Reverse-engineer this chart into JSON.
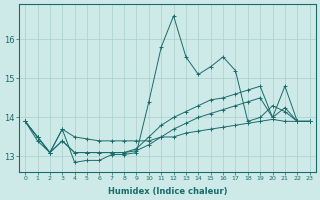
{
  "xlabel": "Humidex (Indice chaleur)",
  "background_color": "#ceeae8",
  "line_color": "#1a6b6b",
  "grid_color": "#aacfcc",
  "x_ticks": [
    0,
    1,
    2,
    3,
    4,
    5,
    6,
    7,
    8,
    9,
    10,
    11,
    12,
    13,
    14,
    15,
    16,
    17,
    18,
    19,
    20,
    21,
    22,
    23
  ],
  "y_ticks": [
    13,
    14,
    15,
    16
  ],
  "ylim": [
    12.6,
    16.9
  ],
  "xlim": [
    -0.5,
    23.5
  ],
  "series": [
    [
      13.9,
      13.4,
      13.1,
      13.7,
      12.85,
      12.9,
      12.9,
      13.05,
      13.05,
      13.1,
      14.4,
      15.8,
      16.6,
      15.55,
      15.1,
      15.3,
      15.55,
      15.2,
      13.9,
      14.0,
      14.3,
      14.15,
      13.9,
      13.9
    ],
    [
      13.9,
      13.5,
      13.1,
      13.7,
      13.5,
      13.45,
      13.4,
      13.4,
      13.4,
      13.4,
      13.4,
      13.5,
      13.5,
      13.6,
      13.65,
      13.7,
      13.75,
      13.8,
      13.85,
      13.9,
      13.95,
      13.9,
      13.9,
      13.9
    ],
    [
      13.9,
      13.5,
      13.1,
      13.4,
      13.1,
      13.1,
      13.1,
      13.1,
      13.1,
      13.15,
      13.3,
      13.5,
      13.7,
      13.85,
      14.0,
      14.1,
      14.2,
      14.3,
      14.4,
      14.5,
      14.0,
      14.8,
      13.9,
      13.9
    ],
    [
      13.9,
      13.5,
      13.1,
      13.4,
      13.1,
      13.1,
      13.1,
      13.1,
      13.1,
      13.2,
      13.5,
      13.8,
      14.0,
      14.15,
      14.3,
      14.45,
      14.5,
      14.6,
      14.7,
      14.8,
      14.0,
      14.25,
      13.9,
      13.9
    ]
  ]
}
